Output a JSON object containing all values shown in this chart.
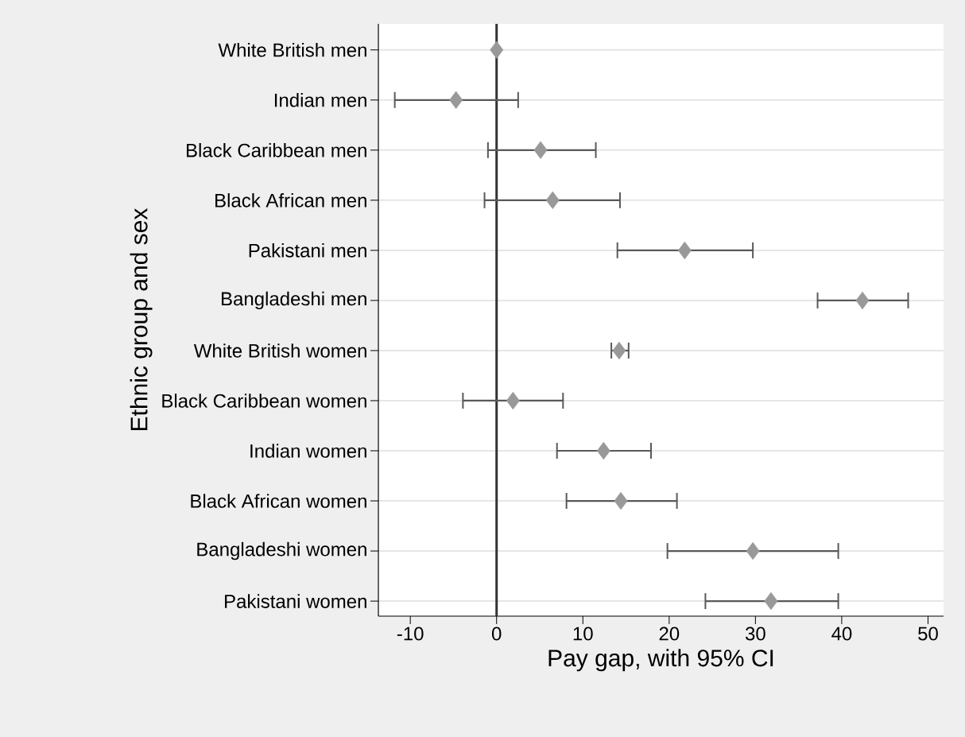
{
  "chart_data": {
    "type": "scatter",
    "orientation": "horizontal",
    "xlabel": "Pay gap, with 95% CI",
    "ylabel": "Ethnic group and sex",
    "categories": [
      "White British men",
      "Indian men",
      "Black Caribbean men",
      "Black African men",
      "Pakistani men",
      "Bangladeshi men",
      "White British women",
      "Black Caribbean women",
      "Indian women",
      "Black African women",
      "Bangladeshi women",
      "Pakistani women"
    ],
    "values": [
      0,
      -4.7,
      5.1,
      6.5,
      21.8,
      42.4,
      14.2,
      1.9,
      12.4,
      14.4,
      29.7,
      31.8
    ],
    "errors": [
      null,
      [
        -11.8,
        2.5
      ],
      [
        -1.0,
        11.5
      ],
      [
        -1.4,
        14.3
      ],
      [
        14.0,
        29.7
      ],
      [
        37.2,
        47.7
      ],
      [
        13.3,
        15.3
      ],
      [
        -3.9,
        7.7
      ],
      [
        7.0,
        17.9
      ],
      [
        8.1,
        20.9
      ],
      [
        19.8,
        39.6
      ],
      [
        24.2,
        39.6
      ]
    ],
    "color": "#999999",
    "marker": "diamond",
    "grid": "y",
    "xlim": [
      -13.7,
      51.8
    ],
    "xticks": [
      -10,
      0,
      10,
      20,
      30,
      40,
      50
    ],
    "ref_lines": [
      {
        "axis": "x",
        "value": 0,
        "color": "#333333"
      }
    ]
  }
}
